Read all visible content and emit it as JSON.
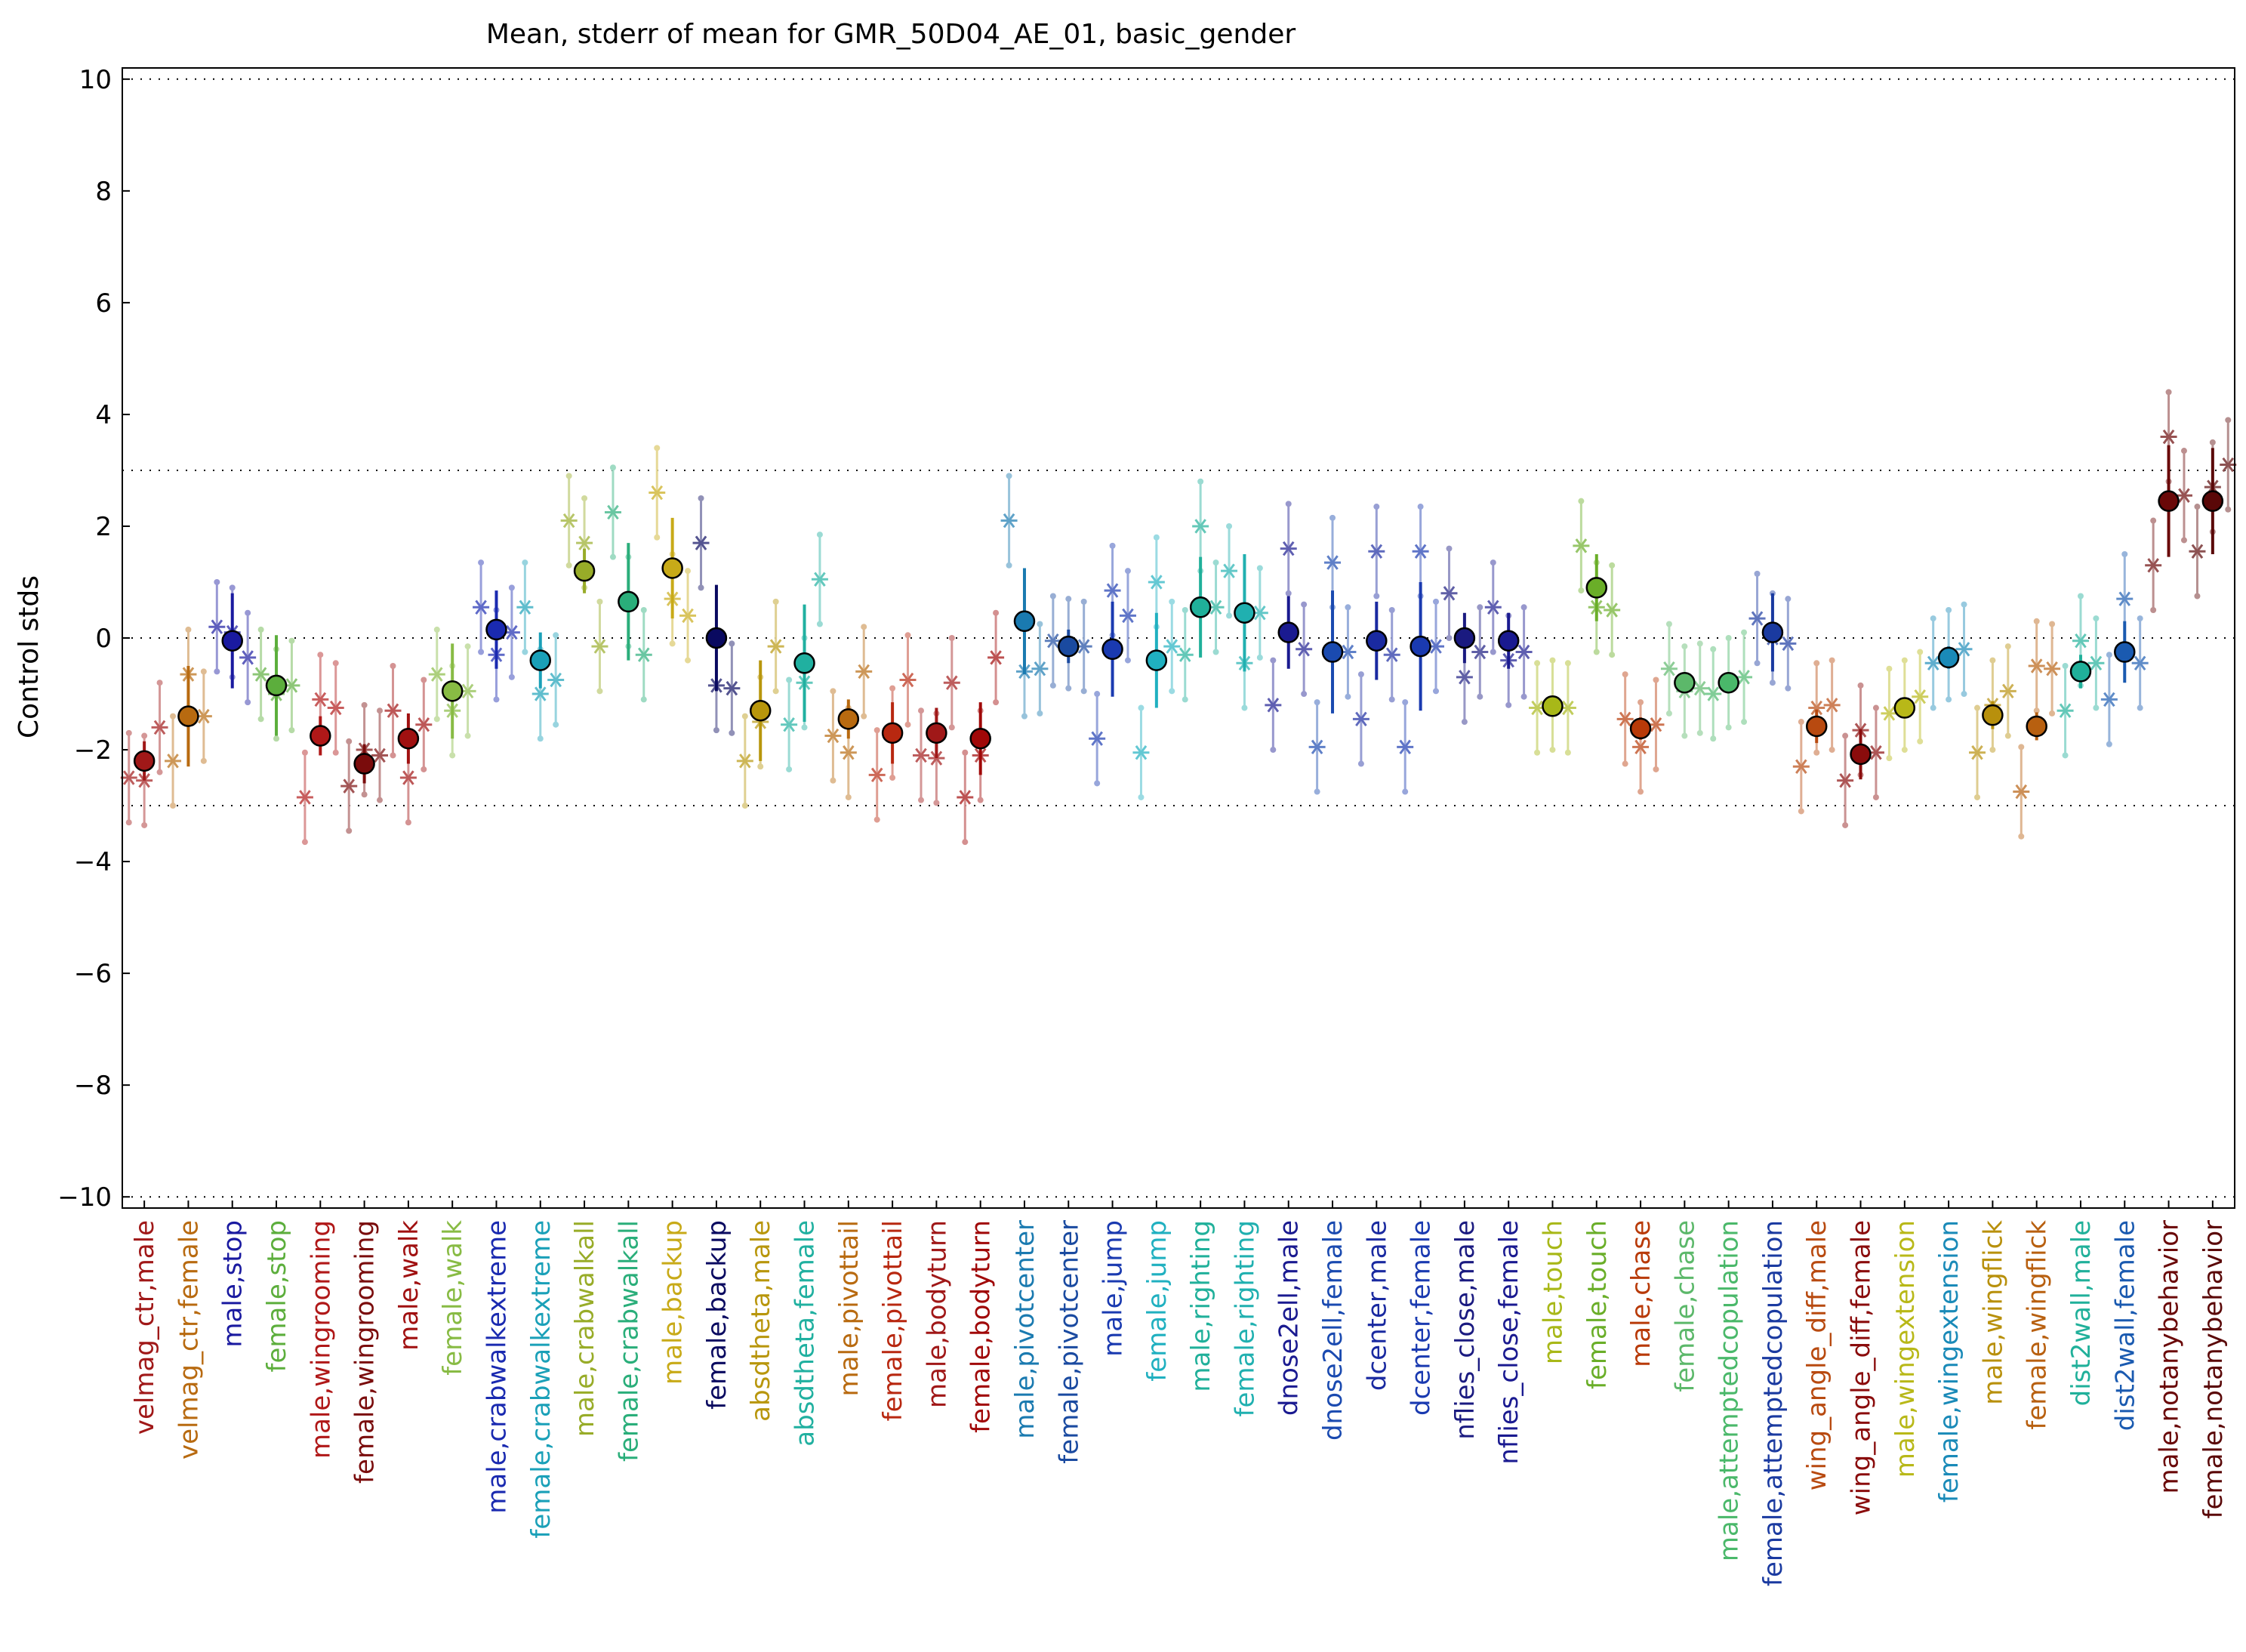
{
  "chart_data": {
    "type": "scatter",
    "title": "Mean, stderr of mean for GMR_50D04_AE_01, basic_gender",
    "xlabel": "",
    "ylabel": "Control stds",
    "ylim": [
      -10.2,
      10.2
    ],
    "yticks": [
      10,
      8,
      6,
      4,
      2,
      0,
      -2,
      -4,
      -6,
      -8,
      -10
    ],
    "ytick_labels": [
      "10",
      "8",
      "6",
      "4",
      "2",
      "0",
      "−2",
      "−4",
      "−6",
      "−8",
      "−10"
    ],
    "reference_lines": [
      10,
      3,
      0,
      -3,
      -10
    ],
    "grid": false,
    "legend": "none",
    "categories": [
      "velmag_ctr,male",
      "velmag_ctr,female",
      "male,stop",
      "female,stop",
      "male,wingrooming",
      "female,wingrooming",
      "male,walk",
      "female,walk",
      "male,crabwalkextreme",
      "female,crabwalkextreme",
      "male,crabwalkall",
      "female,crabwalkall",
      "male,backup",
      "female,backup",
      "absdtheta,male",
      "absdtheta,female",
      "male,pivottail",
      "female,pivottail",
      "male,bodyturn",
      "female,bodyturn",
      "male,pivotcenter",
      "female,pivotcenter",
      "male,jump",
      "female,jump",
      "male,righting",
      "female,righting",
      "dnose2ell,male",
      "dnose2ell,female",
      "dcenter,male",
      "dcenter,female",
      "nflies_close,male",
      "nflies_close,female",
      "male,touch",
      "female,touch",
      "male,chase",
      "female,chase",
      "male,attemptedcopulation",
      "female,attemptedcopulation",
      "wing_angle_diff,male",
      "wing_angle_diff,female",
      "male,wingextension",
      "female,wingextension",
      "male,wingflick",
      "female,wingflick",
      "dist2wall,male",
      "dist2wall,female",
      "male,notanybehavior",
      "female,notanybehavior"
    ],
    "label_colors": [
      "#a01818",
      "#b86a10",
      "#1a1aa0",
      "#5cae3c",
      "#b01818",
      "#7a0c0c",
      "#a01010",
      "#88bb44",
      "#1a2ab0",
      "#1aa0b8",
      "#98ac28",
      "#2aae7a",
      "#c8aa18",
      "#0a0a60",
      "#b8960c",
      "#20b0a0",
      "#b86a10",
      "#b82810",
      "#a01818",
      "#a00808",
      "#1a7ab0",
      "#1a4aa0",
      "#1a3ab0",
      "#20b0c0",
      "#20b09a",
      "#20b0b0",
      "#1a1a90",
      "#1a4ab0",
      "#1a2aa0",
      "#1a3ab0",
      "#1a1a80",
      "#1a1a90",
      "#a8b818",
      "#6aae28",
      "#b83a08",
      "#5cb86a",
      "#4ab86a",
      "#1a3aa0",
      "#b84a10",
      "#8a0c0c",
      "#b8b818",
      "#1a8ab8",
      "#b8900c",
      "#b86010",
      "#20b09a",
      "#1a5ab0",
      "#6a0808",
      "#5a0808"
    ],
    "series": [
      {
        "name": "mean",
        "values": [
          -2.2,
          -1.4,
          -0.05,
          -0.85,
          -1.75,
          -2.25,
          -1.8,
          -0.95,
          0.15,
          -0.4,
          1.2,
          0.65,
          1.25,
          0.0,
          -1.3,
          -0.45,
          -1.45,
          -1.7,
          -1.7,
          -1.8,
          0.3,
          -0.15,
          -0.2,
          -0.4,
          0.55,
          0.45,
          0.1,
          -0.25,
          -0.05,
          -0.15,
          0.0,
          -0.05,
          -1.22,
          0.9,
          -1.62,
          -0.8,
          -0.8,
          0.1,
          -1.58,
          -2.08,
          -1.25,
          -0.35,
          -1.38,
          -1.58,
          -0.6,
          -0.25,
          2.45,
          2.45
        ],
        "stderr": [
          0.35,
          0.9,
          0.85,
          0.9,
          0.35,
          0.35,
          0.45,
          0.85,
          0.7,
          0.5,
          0.4,
          1.05,
          0.9,
          0.95,
          0.9,
          1.05,
          0.35,
          0.55,
          0.45,
          0.65,
          0.95,
          0.3,
          0.85,
          0.85,
          0.9,
          1.05,
          0.65,
          1.1,
          0.7,
          1.15,
          0.45,
          0.5,
          0.1,
          0.6,
          0.2,
          0.15,
          0.1,
          0.7,
          0.3,
          0.45,
          0.1,
          0.2,
          0.25,
          0.25,
          0.3,
          0.55,
          1.0,
          0.95
        ]
      },
      {
        "name": "individual",
        "points": [
          [
            -2.5,
            -2.55,
            -1.6
          ],
          [
            -2.2,
            -0.65,
            -1.4
          ],
          [
            0.2,
            0.1,
            -0.35
          ],
          [
            -0.65,
            -1.0,
            -0.85
          ],
          [
            -2.85,
            -1.1,
            -1.25
          ],
          [
            -2.65,
            -2.0,
            -2.1
          ],
          [
            -1.3,
            -2.5,
            -1.55
          ],
          [
            -0.65,
            -1.3,
            -0.95
          ],
          [
            0.55,
            -0.3,
            0.1
          ],
          [
            0.55,
            -1.0,
            -0.75
          ],
          [
            2.1,
            1.7,
            -0.15
          ],
          [
            2.25,
            0.65,
            -0.3
          ],
          [
            2.6,
            0.7,
            0.4
          ],
          [
            1.7,
            -0.85,
            -0.9
          ],
          [
            -2.2,
            -1.5,
            -0.15
          ],
          [
            -1.55,
            -0.8,
            1.05
          ],
          [
            -1.75,
            -2.05,
            -0.6
          ],
          [
            -2.45,
            -1.7,
            -0.75
          ],
          [
            -2.1,
            -2.15,
            -0.8
          ],
          [
            -2.85,
            -2.1,
            -0.35
          ],
          [
            2.1,
            -0.6,
            -0.55
          ],
          [
            -0.05,
            -0.1,
            -0.15
          ],
          [
            -1.8,
            0.85,
            0.4
          ],
          [
            -2.05,
            1.0,
            -0.15
          ],
          [
            -0.3,
            2.0,
            0.55
          ],
          [
            1.2,
            -0.45,
            0.45
          ],
          [
            -1.2,
            1.6,
            -0.2
          ],
          [
            -1.95,
            1.35,
            -0.25
          ],
          [
            -1.45,
            1.55,
            -0.3
          ],
          [
            -1.95,
            1.55,
            -0.15
          ],
          [
            0.8,
            -0.7,
            -0.25
          ],
          [
            0.55,
            -0.4,
            -0.25
          ],
          [
            -1.25,
            -1.2,
            -1.25
          ],
          [
            1.65,
            0.55,
            0.5
          ],
          [
            -1.45,
            -1.95,
            -1.55
          ],
          [
            -0.55,
            -0.95,
            -0.9
          ],
          [
            -1.0,
            -0.8,
            -0.7
          ],
          [
            0.35,
            0.0,
            -0.1
          ],
          [
            -2.3,
            -1.25,
            -1.2
          ],
          [
            -2.55,
            -1.65,
            -2.05
          ],
          [
            -1.35,
            -1.2,
            -1.05
          ],
          [
            -0.45,
            -0.3,
            -0.2
          ],
          [
            -2.05,
            -1.2,
            -0.95
          ],
          [
            -2.75,
            -0.5,
            -0.55
          ],
          [
            -1.3,
            -0.05,
            -0.45
          ],
          [
            -1.1,
            0.7,
            -0.45
          ],
          [
            1.3,
            3.6,
            2.55
          ],
          [
            1.55,
            2.7,
            3.1
          ]
        ]
      }
    ]
  }
}
